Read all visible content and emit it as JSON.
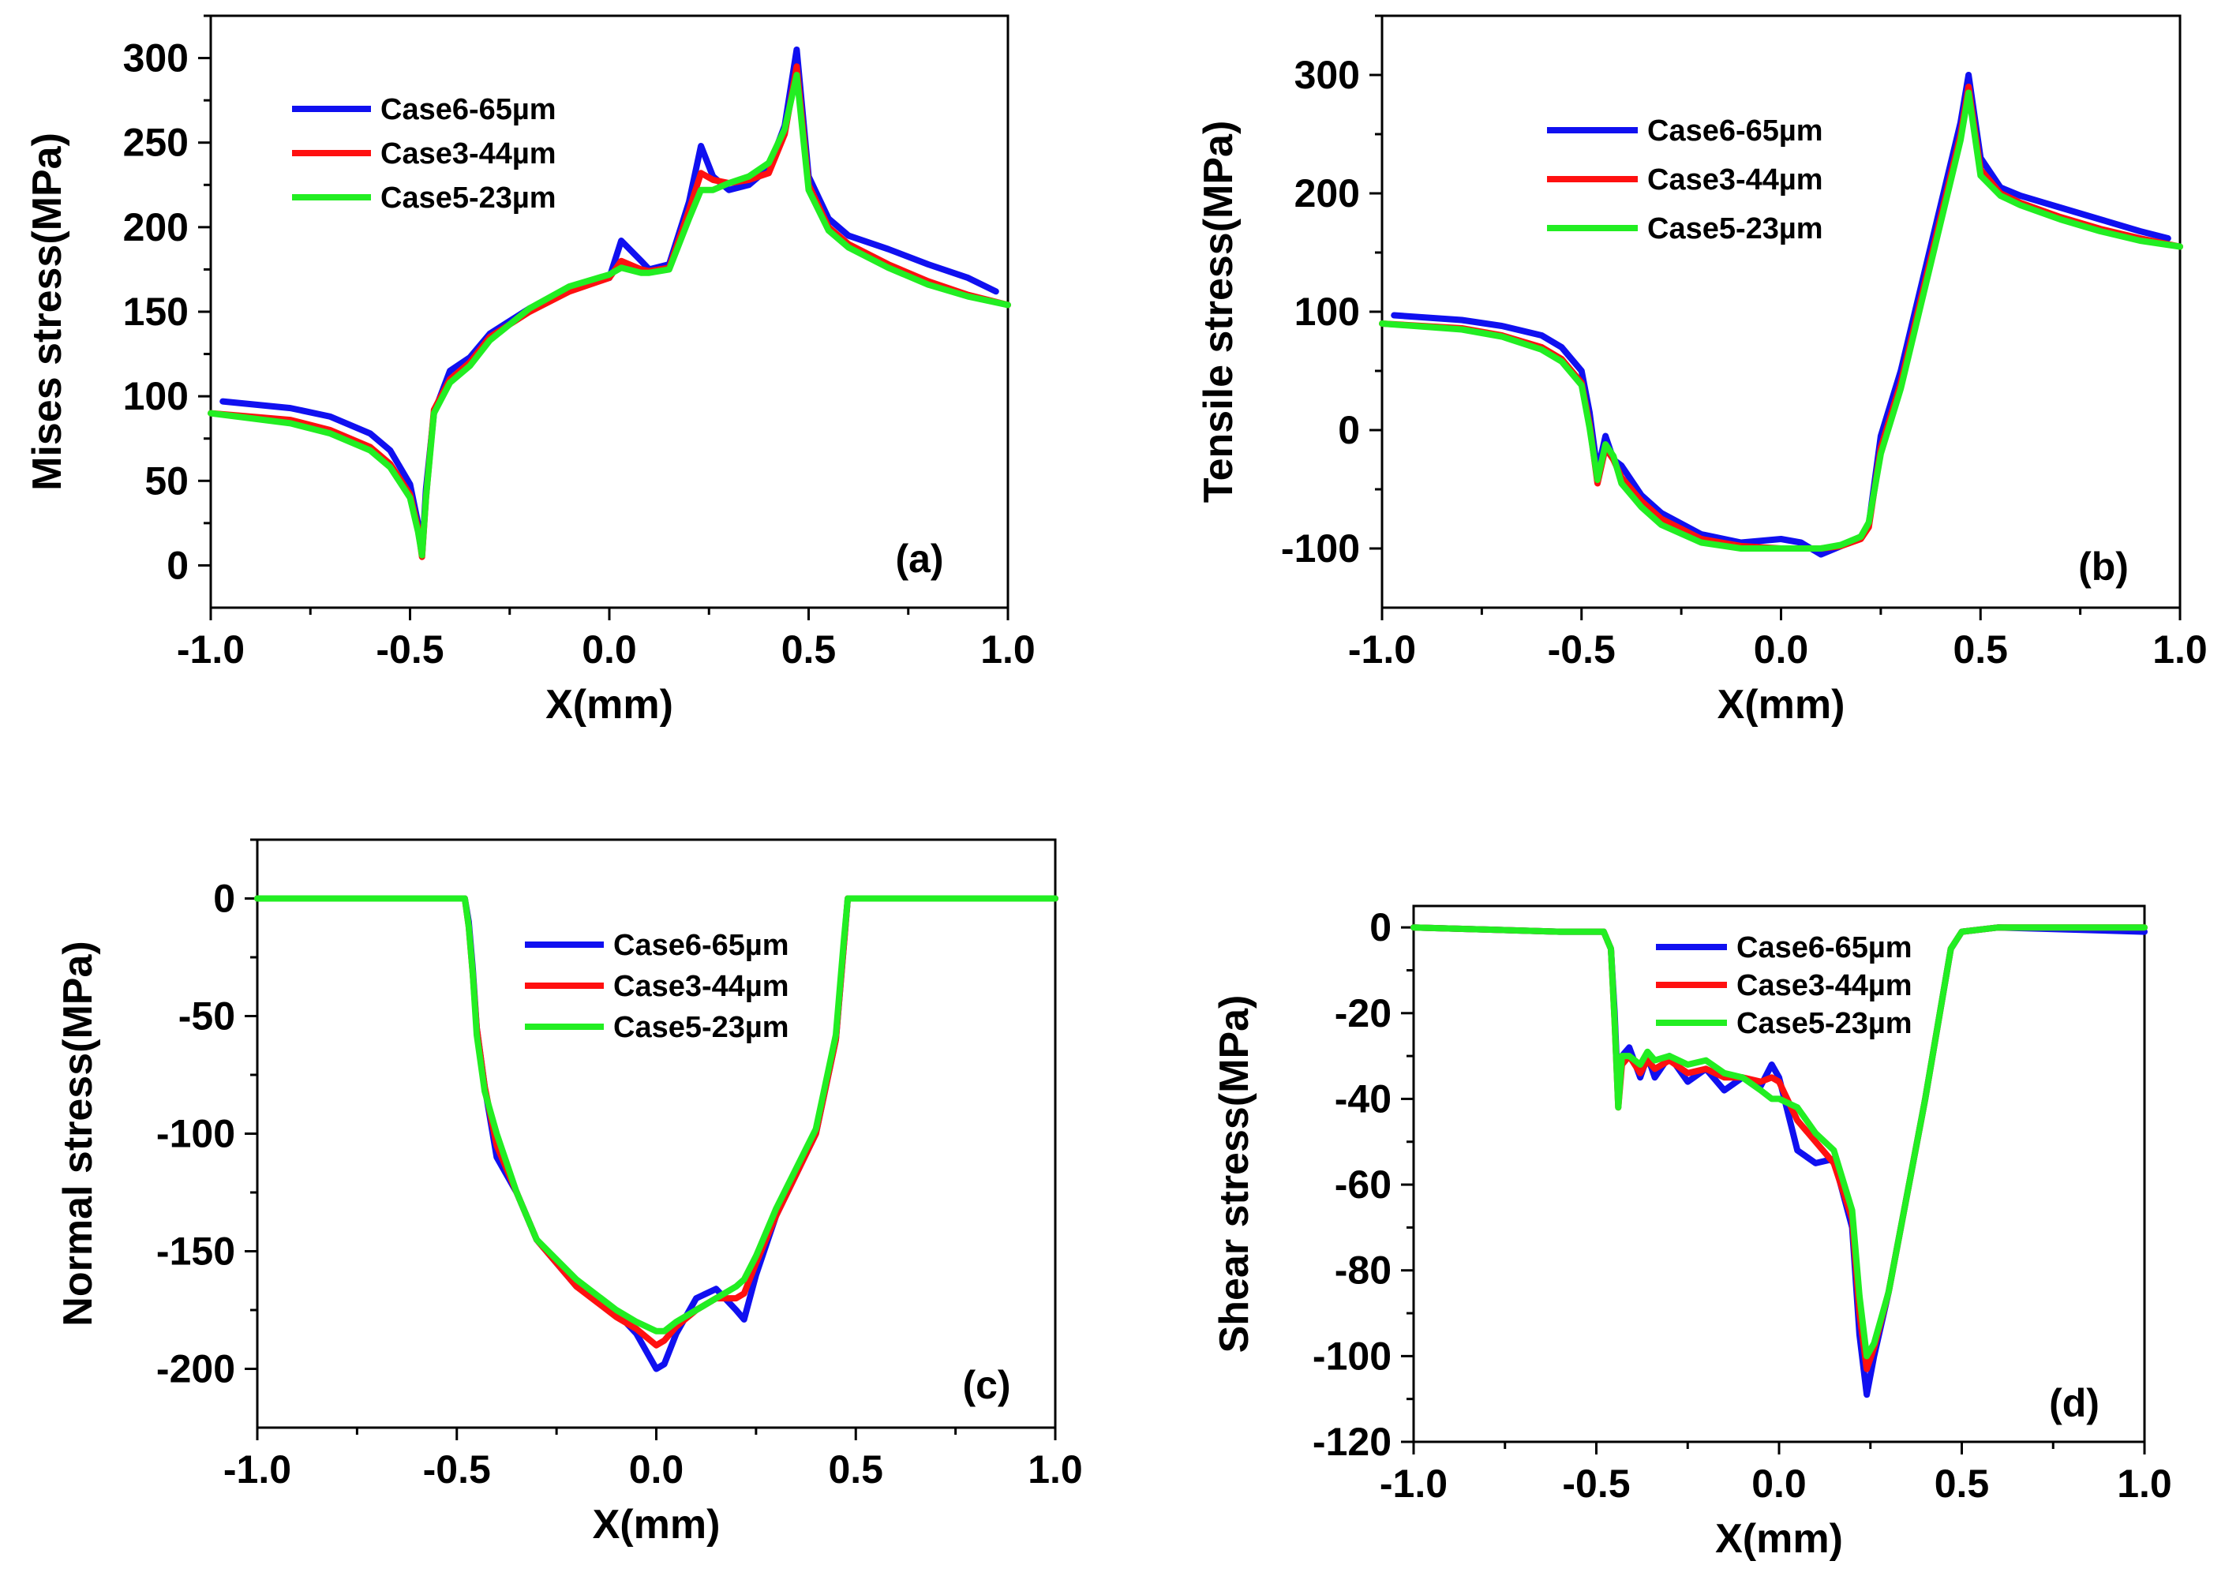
{
  "colors": {
    "Case6-65µm": "#1010f0",
    "Case3-44µm": "#ff1010",
    "Case5-23µm": "#22ee22"
  },
  "chart_data": [
    {
      "id": "a",
      "type": "line",
      "panel_label": "(a)",
      "xlabel": "X(mm)",
      "ylabel": "Mises stress(MPa)",
      "xlim": [
        -1.0,
        1.0
      ],
      "ylim": [
        -25,
        325
      ],
      "xticks": [
        -1.0,
        -0.5,
        0.0,
        0.5,
        1.0
      ],
      "xtick_labels": [
        "-1.0",
        "-0.5",
        "0.0",
        "0.5",
        "1.0"
      ],
      "yticks": [
        0,
        50,
        100,
        150,
        200,
        250,
        300
      ],
      "ytick_labels": [
        "0",
        "50",
        "100",
        "150",
        "200",
        "250",
        "300"
      ],
      "legend_position": "top-left",
      "series": [
        {
          "name": "Case6-65µm",
          "x": [
            -0.97,
            -0.8,
            -0.7,
            -0.6,
            -0.55,
            -0.5,
            -0.48,
            -0.47,
            -0.46,
            -0.44,
            -0.4,
            -0.35,
            -0.3,
            -0.2,
            -0.1,
            0.0,
            0.03,
            0.08,
            0.1,
            0.15,
            0.2,
            0.23,
            0.26,
            0.3,
            0.35,
            0.4,
            0.44,
            0.47,
            0.5,
            0.55,
            0.6,
            0.7,
            0.8,
            0.9,
            0.97
          ],
          "y": [
            97,
            93,
            88,
            78,
            68,
            48,
            25,
            6,
            45,
            90,
            115,
            123,
            137,
            152,
            163,
            170,
            192,
            180,
            175,
            178,
            215,
            248,
            230,
            222,
            225,
            235,
            260,
            305,
            230,
            205,
            195,
            187,
            178,
            170,
            162
          ]
        },
        {
          "name": "Case3-44µm",
          "x": [
            -1.0,
            -0.8,
            -0.7,
            -0.6,
            -0.55,
            -0.5,
            -0.48,
            -0.47,
            -0.46,
            -0.44,
            -0.4,
            -0.35,
            -0.3,
            -0.2,
            -0.1,
            0.0,
            0.03,
            0.08,
            0.1,
            0.15,
            0.2,
            0.23,
            0.26,
            0.3,
            0.35,
            0.4,
            0.44,
            0.47,
            0.5,
            0.55,
            0.6,
            0.7,
            0.8,
            0.9,
            1.0
          ],
          "y": [
            90,
            86,
            80,
            70,
            60,
            42,
            22,
            5,
            40,
            92,
            110,
            120,
            135,
            150,
            162,
            170,
            180,
            175,
            174,
            176,
            210,
            232,
            228,
            226,
            228,
            232,
            255,
            295,
            225,
            200,
            190,
            178,
            168,
            160,
            154
          ]
        },
        {
          "name": "Case5-23µm",
          "x": [
            -1.0,
            -0.8,
            -0.7,
            -0.6,
            -0.55,
            -0.5,
            -0.48,
            -0.47,
            -0.46,
            -0.44,
            -0.4,
            -0.35,
            -0.3,
            -0.2,
            -0.1,
            0.0,
            0.03,
            0.08,
            0.1,
            0.15,
            0.2,
            0.23,
            0.26,
            0.3,
            0.35,
            0.4,
            0.44,
            0.47,
            0.5,
            0.55,
            0.6,
            0.7,
            0.8,
            0.9,
            1.0
          ],
          "y": [
            90,
            84,
            78,
            68,
            58,
            40,
            20,
            6,
            40,
            90,
            108,
            118,
            133,
            152,
            165,
            172,
            176,
            173,
            173,
            175,
            205,
            222,
            222,
            226,
            230,
            238,
            258,
            290,
            222,
            198,
            188,
            176,
            166,
            159,
            154
          ]
        }
      ]
    },
    {
      "id": "b",
      "type": "line",
      "panel_label": "(b)",
      "xlabel": "X(mm)",
      "ylabel": "Tensile stress(MPa)",
      "xlim": [
        -1.0,
        1.0
      ],
      "ylim": [
        -150,
        350
      ],
      "xticks": [
        -1.0,
        -0.5,
        0.0,
        0.5,
        1.0
      ],
      "xtick_labels": [
        "-1.0",
        "-0.5",
        "0.0",
        "0.5",
        "1.0"
      ],
      "yticks": [
        -100,
        0,
        100,
        200,
        300
      ],
      "ytick_labels": [
        "-100",
        "0",
        "100",
        "200",
        "300"
      ],
      "legend_position": "top-left",
      "series": [
        {
          "name": "Case6-65µm",
          "x": [
            -0.97,
            -0.8,
            -0.7,
            -0.6,
            -0.55,
            -0.5,
            -0.48,
            -0.46,
            -0.44,
            -0.42,
            -0.4,
            -0.35,
            -0.3,
            -0.2,
            -0.1,
            0.0,
            0.05,
            0.1,
            0.15,
            0.2,
            0.22,
            0.25,
            0.3,
            0.35,
            0.4,
            0.45,
            0.47,
            0.5,
            0.55,
            0.6,
            0.7,
            0.8,
            0.9,
            0.97
          ],
          "y": [
            97,
            93,
            88,
            80,
            70,
            50,
            15,
            -35,
            -5,
            -25,
            -30,
            -55,
            -70,
            -88,
            -95,
            -92,
            -95,
            -105,
            -98,
            -90,
            -80,
            -5,
            50,
            120,
            190,
            260,
            300,
            230,
            205,
            198,
            188,
            178,
            168,
            162
          ]
        },
        {
          "name": "Case3-44µm",
          "x": [
            -1.0,
            -0.8,
            -0.7,
            -0.6,
            -0.55,
            -0.5,
            -0.48,
            -0.46,
            -0.44,
            -0.42,
            -0.4,
            -0.35,
            -0.3,
            -0.2,
            -0.1,
            0.0,
            0.05,
            0.1,
            0.15,
            0.2,
            0.22,
            0.25,
            0.3,
            0.35,
            0.4,
            0.45,
            0.47,
            0.5,
            0.55,
            0.6,
            0.7,
            0.8,
            0.9,
            1.0
          ],
          "y": [
            90,
            86,
            80,
            70,
            60,
            40,
            5,
            -45,
            -15,
            -25,
            -40,
            -60,
            -75,
            -92,
            -98,
            -100,
            -100,
            -100,
            -98,
            -92,
            -82,
            -15,
            40,
            110,
            180,
            250,
            290,
            220,
            200,
            192,
            180,
            170,
            162,
            155
          ]
        },
        {
          "name": "Case5-23µm",
          "x": [
            -1.0,
            -0.8,
            -0.7,
            -0.6,
            -0.55,
            -0.5,
            -0.48,
            -0.46,
            -0.44,
            -0.42,
            -0.4,
            -0.35,
            -0.3,
            -0.2,
            -0.1,
            0.0,
            0.05,
            0.1,
            0.15,
            0.2,
            0.22,
            0.25,
            0.3,
            0.35,
            0.4,
            0.45,
            0.47,
            0.5,
            0.55,
            0.6,
            0.7,
            0.8,
            0.9,
            1.0
          ],
          "y": [
            90,
            85,
            79,
            68,
            58,
            38,
            2,
            -42,
            -12,
            -22,
            -45,
            -65,
            -80,
            -95,
            -100,
            -100,
            -100,
            -100,
            -97,
            -90,
            -78,
            -20,
            35,
            105,
            175,
            245,
            285,
            215,
            198,
            190,
            178,
            168,
            160,
            155
          ]
        }
      ]
    },
    {
      "id": "c",
      "type": "line",
      "panel_label": "(c)",
      "xlabel": "X(mm)",
      "ylabel": "Normal stress(MPa)",
      "xlim": [
        -1.0,
        1.0
      ],
      "ylim": [
        -225,
        25
      ],
      "xticks": [
        -1.0,
        -0.5,
        0.0,
        0.5,
        1.0
      ],
      "xtick_labels": [
        "-1.0",
        "-0.5",
        "0.0",
        "0.5",
        "1.0"
      ],
      "yticks": [
        -200,
        -150,
        -100,
        -50,
        0
      ],
      "ytick_labels": [
        "-200",
        "-150",
        "-100",
        "-50",
        "0"
      ],
      "legend_position": "top-right",
      "series": [
        {
          "name": "Case6-65µm",
          "x": [
            -1.0,
            -0.6,
            -0.48,
            -0.47,
            -0.46,
            -0.45,
            -0.43,
            -0.4,
            -0.35,
            -0.3,
            -0.2,
            -0.1,
            -0.05,
            0.0,
            0.02,
            0.05,
            0.1,
            0.15,
            0.2,
            0.22,
            0.25,
            0.3,
            0.4,
            0.45,
            0.47,
            0.48,
            0.6,
            1.0
          ],
          "y": [
            0,
            0,
            0,
            -10,
            -30,
            -55,
            -80,
            -110,
            -125,
            -145,
            -165,
            -176,
            -185,
            -200,
            -198,
            -185,
            -170,
            -166,
            -175,
            -179,
            -160,
            -135,
            -100,
            -60,
            -20,
            0,
            0,
            0
          ]
        },
        {
          "name": "Case3-44µm",
          "x": [
            -1.0,
            -0.6,
            -0.48,
            -0.47,
            -0.46,
            -0.45,
            -0.43,
            -0.4,
            -0.35,
            -0.3,
            -0.2,
            -0.1,
            -0.05,
            0.0,
            0.02,
            0.05,
            0.1,
            0.15,
            0.2,
            0.22,
            0.25,
            0.3,
            0.4,
            0.45,
            0.47,
            0.48,
            0.6,
            1.0
          ],
          "y": [
            0,
            0,
            0,
            -12,
            -32,
            -55,
            -80,
            -105,
            -125,
            -145,
            -165,
            -178,
            -183,
            -190,
            -188,
            -182,
            -175,
            -170,
            -170,
            -168,
            -155,
            -135,
            -100,
            -60,
            -20,
            0,
            0,
            0
          ]
        },
        {
          "name": "Case5-23µm",
          "x": [
            -1.0,
            -0.6,
            -0.48,
            -0.47,
            -0.46,
            -0.45,
            -0.43,
            -0.4,
            -0.35,
            -0.3,
            -0.2,
            -0.1,
            -0.05,
            0.0,
            0.02,
            0.05,
            0.1,
            0.15,
            0.2,
            0.22,
            0.25,
            0.3,
            0.4,
            0.45,
            0.47,
            0.48,
            0.6,
            1.0
          ],
          "y": [
            0,
            0,
            0,
            -12,
            -32,
            -58,
            -82,
            -100,
            -125,
            -145,
            -162,
            -175,
            -180,
            -184,
            -184,
            -180,
            -175,
            -170,
            -165,
            -162,
            -152,
            -132,
            -98,
            -58,
            -18,
            0,
            0,
            0
          ]
        }
      ]
    },
    {
      "id": "d",
      "type": "line",
      "panel_label": "(d)",
      "xlabel": "X(mm)",
      "ylabel": "Shear stress(MPa)",
      "xlim": [
        -1.0,
        1.0
      ],
      "ylim": [
        -120,
        5
      ],
      "xticks": [
        -1.0,
        -0.5,
        0.0,
        0.5,
        1.0
      ],
      "xtick_labels": [
        "-1.0",
        "-0.5",
        "0.0",
        "0.5",
        "1.0"
      ],
      "yticks": [
        -120,
        -100,
        -80,
        -60,
        -40,
        -20,
        0
      ],
      "ytick_labels": [
        "-120",
        "-100",
        "-80",
        "-60",
        "-40",
        "-20",
        "0"
      ],
      "legend_position": "top-center",
      "series": [
        {
          "name": "Case6-65µm",
          "x": [
            -1.0,
            -0.6,
            -0.48,
            -0.46,
            -0.45,
            -0.44,
            -0.43,
            -0.41,
            -0.38,
            -0.36,
            -0.34,
            -0.3,
            -0.25,
            -0.2,
            -0.15,
            -0.1,
            -0.05,
            -0.02,
            0.0,
            0.05,
            0.1,
            0.15,
            0.2,
            0.22,
            0.24,
            0.26,
            0.3,
            0.4,
            0.47,
            0.5,
            0.6,
            1.0
          ],
          "y": [
            0,
            -1,
            -1,
            -5,
            -20,
            -40,
            -30,
            -28,
            -35,
            -30,
            -35,
            -30,
            -36,
            -33,
            -38,
            -35,
            -37,
            -32,
            -35,
            -52,
            -55,
            -54,
            -70,
            -95,
            -109,
            -100,
            -85,
            -40,
            -5,
            -1,
            0,
            -1
          ]
        },
        {
          "name": "Case3-44µm",
          "x": [
            -1.0,
            -0.6,
            -0.48,
            -0.46,
            -0.45,
            -0.44,
            -0.43,
            -0.41,
            -0.38,
            -0.36,
            -0.34,
            -0.3,
            -0.25,
            -0.2,
            -0.15,
            -0.1,
            -0.05,
            -0.02,
            0.0,
            0.05,
            0.1,
            0.15,
            0.2,
            0.22,
            0.24,
            0.26,
            0.3,
            0.4,
            0.47,
            0.5,
            0.6,
            1.0
          ],
          "y": [
            0,
            -1,
            -1,
            -5,
            -22,
            -42,
            -32,
            -30,
            -34,
            -31,
            -33,
            -31,
            -34,
            -33,
            -35,
            -35,
            -36,
            -35,
            -36,
            -45,
            -50,
            -55,
            -68,
            -90,
            -103,
            -98,
            -85,
            -40,
            -5,
            -1,
            0,
            0
          ]
        },
        {
          "name": "Case5-23µm",
          "x": [
            -1.0,
            -0.6,
            -0.48,
            -0.46,
            -0.45,
            -0.44,
            -0.43,
            -0.41,
            -0.38,
            -0.36,
            -0.34,
            -0.3,
            -0.25,
            -0.2,
            -0.15,
            -0.1,
            -0.05,
            -0.02,
            0.0,
            0.05,
            0.1,
            0.15,
            0.2,
            0.22,
            0.24,
            0.26,
            0.3,
            0.4,
            0.47,
            0.5,
            0.6,
            1.0
          ],
          "y": [
            0,
            -1,
            -1,
            -5,
            -22,
            -42,
            -30,
            -30,
            -32,
            -29,
            -31,
            -30,
            -32,
            -31,
            -34,
            -35,
            -38,
            -40,
            -40,
            -42,
            -48,
            -52,
            -66,
            -86,
            -100,
            -97,
            -85,
            -40,
            -5,
            -1,
            0,
            0
          ]
        }
      ]
    }
  ]
}
